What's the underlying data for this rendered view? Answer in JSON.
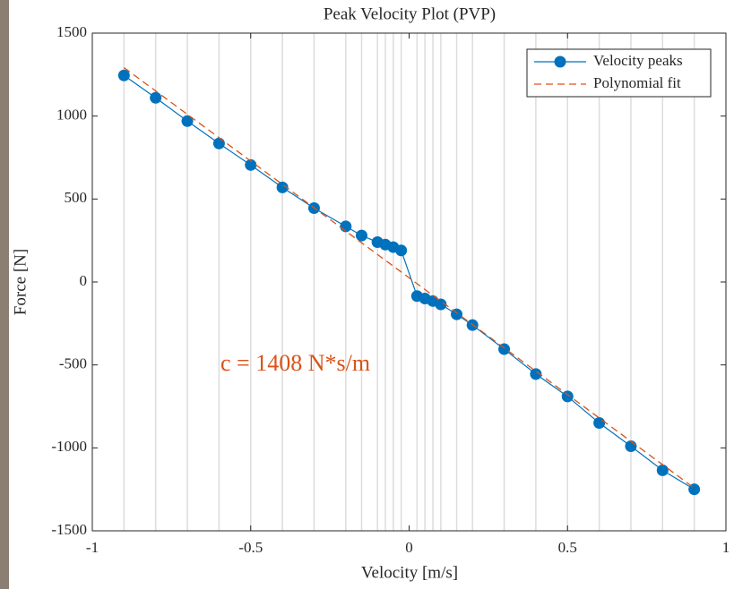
{
  "chart_data": {
    "type": "line",
    "title": "Peak Velocity Plot (PVP)",
    "x_label": "Velocity [m/s]",
    "y_label": "Force [N]",
    "annotation": "c = 1408 N*s/m",
    "legend": "northeast",
    "xlim": [
      -1,
      1
    ],
    "xticks": [
      -1,
      -0.5,
      0,
      0.5,
      1
    ],
    "ylim": [
      -1500,
      1500
    ],
    "yticks": [
      -1500,
      -1000,
      -500,
      0,
      500,
      1000,
      1500
    ],
    "series": [
      {
        "name": "Velocity peaks",
        "color": "#0072bd",
        "style": "solid-markers",
        "x": [
          -0.9,
          -0.8,
          -0.7,
          -0.6,
          -0.5,
          -0.4,
          -0.3,
          -0.2,
          -0.15,
          -0.1,
          -0.075,
          -0.05,
          -0.025,
          0.025,
          0.05,
          0.075,
          0.1,
          0.15,
          0.2,
          0.3,
          0.4,
          0.5,
          0.6,
          0.7,
          0.8,
          0.9
        ],
        "values": [
          1245,
          1110,
          970,
          835,
          705,
          570,
          445,
          335,
          280,
          240,
          225,
          210,
          190,
          -85,
          -100,
          -115,
          -135,
          -195,
          -260,
          -405,
          -555,
          -690,
          -850,
          -990,
          -1135,
          -1250
        ]
      },
      {
        "name": "Polynomial fit",
        "color": "#d95319",
        "style": "dashed",
        "x": [
          -0.9,
          0.9
        ],
        "values": [
          1292,
          -1242
        ]
      }
    ]
  }
}
